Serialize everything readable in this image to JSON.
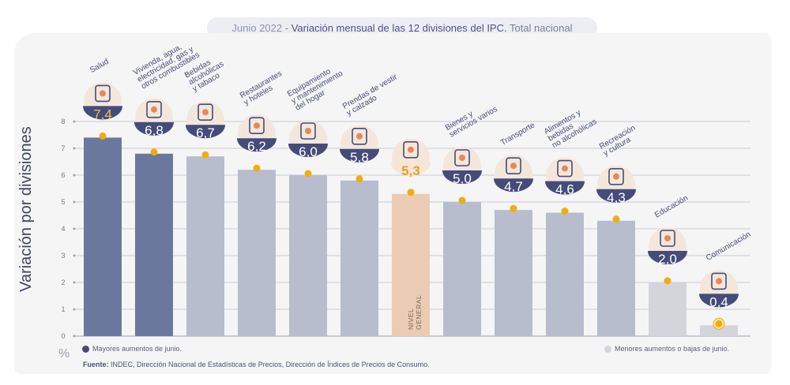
{
  "title": {
    "date": "Junio 2022",
    "separator": " - ",
    "main": "Variación mensual de las 12 divisiones del IPC.",
    "scope": " Total nacional"
  },
  "y_axis_label": "Variación por divisiones",
  "unit_label": "%",
  "legend": {
    "high": "Mayores aumentos de junio.",
    "low": "Menores aumentos o bajas de junio."
  },
  "source": {
    "label": "Fuente:",
    "text": " INDEC, Dirección Nacional de Estadísticas de Precios, Dirección de Índices de Precios de Consumo."
  },
  "colors": {
    "high": "#6b789e",
    "low": "#b7bdcc",
    "general": "#ebcbb3",
    "lowest": "#d3d5db",
    "badge": "#454c79",
    "dot": "#f0ad0d",
    "grid": "#c8cad2"
  },
  "chart_data": {
    "type": "bar",
    "categories": [
      "Salud",
      "Vivienda, agua, electricidad, gas y otros combustibles",
      "Bebidas alcohólicas y tabaco",
      "Restaurantes y hoteles",
      "Equipamiento y mantenimiento del hogar",
      "Prendas de vestir y calzado",
      "NIVEL GENERAL",
      "Bienes y servicios varios",
      "Transporte",
      "Alimentos y bebidas no alcohólicas",
      "Recreación y cultura",
      "Educación",
      "Comunicación"
    ],
    "label_lines": [
      [
        "Salud"
      ],
      [
        "Vivienda, agua,",
        "electricidad, gas y",
        "otros combustibles"
      ],
      [
        "Bebidas",
        "alcohólicas",
        "y tabaco"
      ],
      [
        "Restaurantes",
        "y hoteles"
      ],
      [
        "Equipamiento",
        "y mantenimiento",
        "del hogar"
      ],
      [
        "Prendas de vestir",
        "y calzado"
      ],
      [
        "NIVEL",
        "GENERAL"
      ],
      [
        "Bienes y",
        "servicios varios"
      ],
      [
        "Transporte"
      ],
      [
        "Alimentos y",
        "bebidas",
        "no alcohólicas"
      ],
      [
        "Recreación",
        "y cultura"
      ],
      [
        "Educación"
      ],
      [
        "Comunicación"
      ]
    ],
    "values": [
      7.4,
      6.8,
      6.7,
      6.2,
      6.0,
      5.8,
      5.3,
      5.0,
      4.7,
      4.6,
      4.3,
      2.0,
      0.4
    ],
    "value_labels": [
      "7,4",
      "6,8",
      "6,7",
      "6,2",
      "6,0",
      "5,8",
      "5,3",
      "5,0",
      "4,7",
      "4,6",
      "4,3",
      "2,0",
      "0,4"
    ],
    "groups": [
      "high",
      "high",
      "low",
      "low",
      "low",
      "low",
      "general",
      "low",
      "low",
      "low",
      "low",
      "lowest",
      "lowest"
    ],
    "icons": [
      "health-cross-icon",
      "lightbulb-icon",
      "wine-bottle-icon",
      "plate-cutlery-icon",
      "washing-machine-icon",
      "tshirt-icon",
      "shopping-basket-icon",
      "comb-scissors-icon",
      "bus-car-icon",
      "chicken-food-icon",
      "umbrella-sun-icon",
      "notebook-icon",
      "smartphone-icon"
    ],
    "ylim": [
      0,
      8
    ],
    "yticks": [
      0,
      1,
      2,
      3,
      4,
      5,
      6,
      7,
      8
    ],
    "grid": true
  }
}
